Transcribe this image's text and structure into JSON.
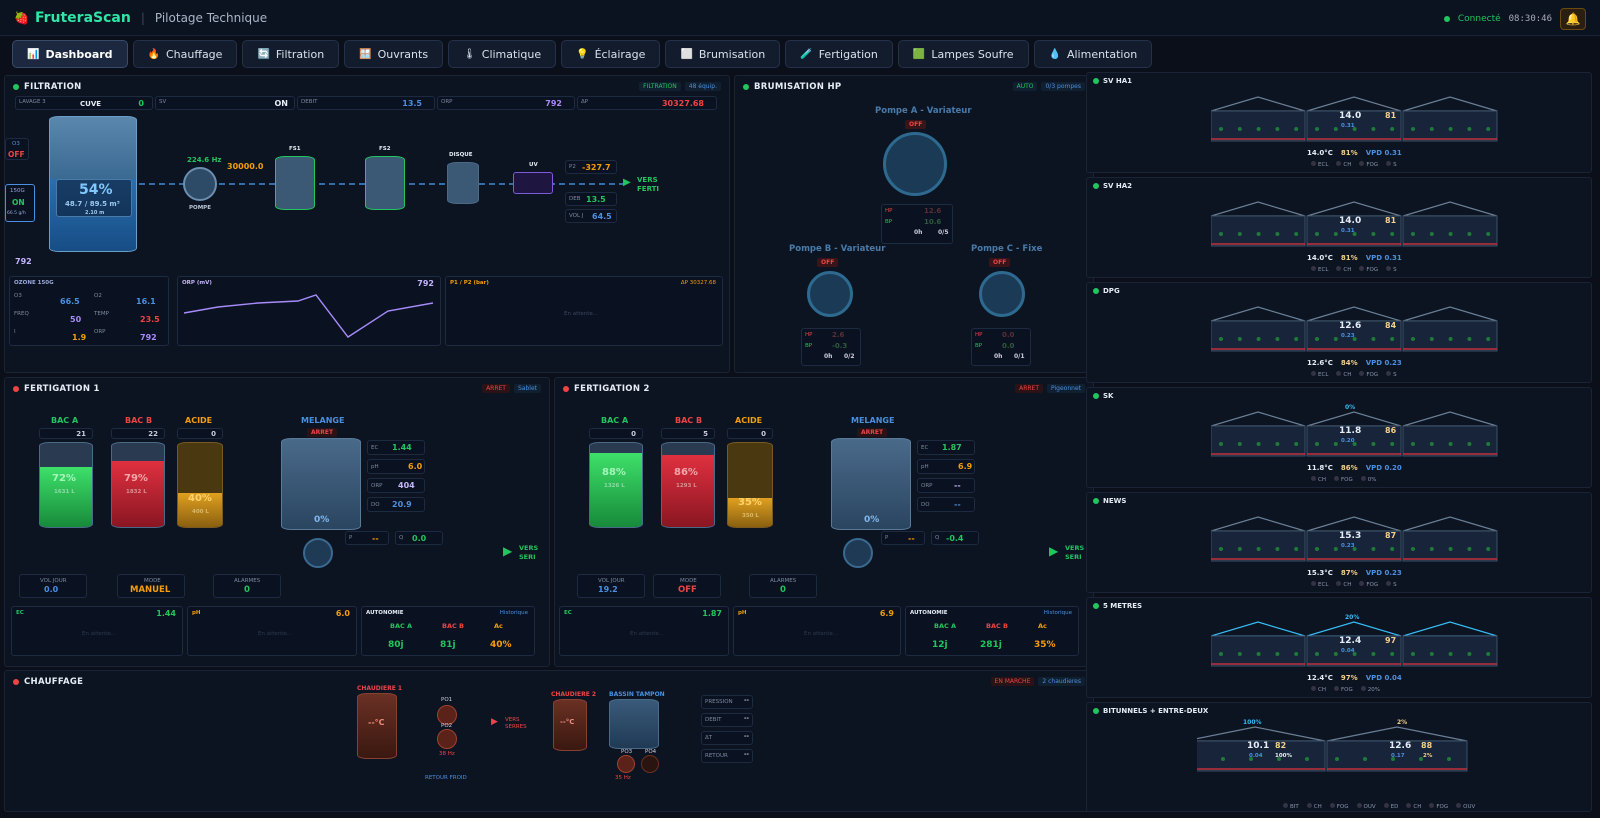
{
  "app": {
    "name": "FruteraScan",
    "subtitle": "Pilotage Technique",
    "status": "Connecté",
    "time": "08:30:46"
  },
  "tabs": [
    {
      "label": "Dashboard",
      "icon": "📊"
    },
    {
      "label": "Chauffage",
      "icon": "🔥"
    },
    {
      "label": "Filtration",
      "icon": "🔄"
    },
    {
      "label": "Ouvrants",
      "icon": "🪟"
    },
    {
      "label": "Climatique",
      "icon": "🌡"
    },
    {
      "label": "Éclairage",
      "icon": "💡"
    },
    {
      "label": "Brumisation",
      "icon": "⬜"
    },
    {
      "label": "Fertigation",
      "icon": "🧪"
    },
    {
      "label": "Lampes Soufre",
      "icon": "🟩"
    },
    {
      "label": "Alimentation",
      "icon": "💧"
    }
  ],
  "filtration": {
    "title": "FILTRATION",
    "badge1": "FILTRATION",
    "badge2": "48 équip.",
    "cuve_label": "CUVE",
    "lavage_label": "LAVAGE 3",
    "lavage_val": "0",
    "sv_label": "SV",
    "sv_val": "ON",
    "debit_label": "DEBIT",
    "debit_val": "13.5",
    "orp_label": "ORP",
    "orp_val": "792",
    "ap_label": "ΔP",
    "ap_val": "30327.68",
    "o3_label": "O3",
    "o3_state": "OFF",
    "ozone_label": "150G",
    "ozone_state": "ON",
    "ozone_rate": "66.5 g/h",
    "cuve_pct": "54%",
    "cuve_vol": "48.7 / 89.5 m³",
    "cuve_h": "2.10 m",
    "orp_bottom": "792",
    "pompe_hz": "224.6 Hz",
    "pompe_label": "POMPE",
    "pompe_val": "30000.0",
    "fs1": "FS1",
    "fs2": "FS2",
    "disque": "DISQUE",
    "uv": "UV",
    "p2_label": "P2",
    "p2_val": "-327.7",
    "deb_label": "DEB",
    "deb_val": "13.5",
    "volj_label": "VOL J",
    "volj_val": "64.5",
    "vers": "VERS",
    "ferti": "FERTI",
    "ozone_box": {
      "title": "OZONE 150G",
      "o3_label": "O3",
      "o3_val": "66.5",
      "o2_label": "O2",
      "o2_val": "16.1",
      "freq_label": "FREQ",
      "freq_val": "50",
      "temp_label": "TEMP",
      "temp_val": "23.5",
      "i_label": "I",
      "i_val": "1.9",
      "orp_label": "ORP",
      "orp_val": "792"
    },
    "orp_chart_title": "ORP (mV)",
    "orp_chart_val": "792",
    "p_chart_title": "P1 / P2 (bar)",
    "p_chart_ap": "ΔP 30327.68",
    "en_attente": "En attente..."
  },
  "brumisation": {
    "title": "BRUMISATION HP",
    "badge1": "AUTO",
    "badge2": "0/3 pompes",
    "pompeA": "Pompe A - Variateur",
    "pompeB": "Pompe B - Variateur",
    "pompeC": "Pompe C - Fixe",
    "off": "OFF",
    "hp_label": "HP",
    "bp_label": "BP",
    "hp_a": "12.6",
    "bp_a": "10.6",
    "h_a": "0h",
    "r_a": "0/5",
    "hp_b": "2.6",
    "bp_b": "-0.3",
    "h_b": "0h",
    "r_b": "0/2",
    "hp_c": "0.0",
    "bp_c": "0.0",
    "h_c": "0h",
    "r_c": "0/1"
  },
  "ferti1": {
    "title": "FERTIGATION 1",
    "badge1": "ARRET",
    "badge2": "Sablet",
    "bacA": "BAC A",
    "bacB": "BAC B",
    "acide": "ACIDE",
    "melange": "MELANGE",
    "arret": "ARRET",
    "a_pct": "72%",
    "a_l": "1631 L",
    "a_top": "21",
    "b_pct": "79%",
    "b_l": "1832 L",
    "b_top": "22",
    "c_pct": "40%",
    "c_l": "400 L",
    "c_top": "0",
    "m_pct": "0%",
    "ec_label": "EC",
    "ec": "1.44",
    "ph_label": "pH",
    "ph": "6.0",
    "orp_label": "ORP",
    "orp": "404",
    "do_label": "DO",
    "do": "20.9",
    "p_label": "P",
    "p": "--",
    "q_label": "Q",
    "q": "0.0",
    "vol_label": "VOL JOUR",
    "vol": "0.0",
    "mode_label": "MODE",
    "mode": "MANUEL",
    "alarm_label": "ALARMES",
    "alarm": "0",
    "chart_ec": "1.44",
    "chart_ph": "6.0",
    "auto_title": "AUTONOMIE",
    "historique": "Historique",
    "ac": "Ac",
    "auto_a": "80j",
    "auto_b": "81j",
    "auto_c": "40%",
    "vers": "VERS",
    "seri": "SERI"
  },
  "ferti2": {
    "title": "FERTIGATION 2",
    "badge1": "ARRET",
    "badge2": "Pigeonnet",
    "a_pct": "88%",
    "a_l": "1326 L",
    "a_top": "0",
    "b_pct": "86%",
    "b_l": "1293 L",
    "b_top": "5",
    "c_pct": "35%",
    "c_l": "350 L",
    "c_top": "0",
    "m_pct": "0%",
    "ec": "1.87",
    "ph": "6.9",
    "orp": "--",
    "do": "--",
    "p": "--",
    "q": "-0.4",
    "vol": "19.2",
    "mode": "OFF",
    "alarm": "0",
    "chart_ec": "1.87",
    "chart_ph": "6.9",
    "auto_a": "12j",
    "auto_b": "281j",
    "auto_c": "35%"
  },
  "chauffage": {
    "title": "CHAUFFAGE",
    "badge1": "EN MARCHE",
    "badge2": "2 chaudieres",
    "ch1": "CHAUDIERE 1",
    "ch2": "CHAUDIERE 2",
    "bassin": "BASSIN TAMPON",
    "temp": "--°C",
    "po1": "PO1",
    "po2": "PO2",
    "po3": "PO3",
    "po4": "PO4",
    "hz1": "38 Hz",
    "hz2": "35 Hz",
    "vers": "VERS",
    "serres": "SERRES",
    "retour": "RETOUR FROID",
    "r1": "PRESSION",
    "r2": "DEBIT",
    "r3": "ΔT",
    "r4": "RETOUR",
    "dash": "--"
  },
  "houses": [
    {
      "name": "SV HA1",
      "t": "14.0",
      "h": "81",
      "vpd": "0.31",
      "sum_t": "14.0°C",
      "sum_h": "81%",
      "sum_vpd": "VPD 0.31",
      "legend": [
        "ECL",
        "CH",
        "FOG",
        "S"
      ],
      "chval": "true"
    },
    {
      "name": "SV HA2",
      "t": "14.0",
      "h": "81",
      "vpd": "0.31",
      "sum_t": "14.0°C",
      "sum_h": "81%",
      "sum_vpd": "VPD 0.31",
      "legend": [
        "ECL",
        "CH",
        "FOG",
        "S"
      ]
    },
    {
      "name": "DPG",
      "t": "12.6",
      "h": "84",
      "vpd": "0.23",
      "sum_t": "12.6°C",
      "sum_h": "84%",
      "sum_vpd": "VPD 0.23",
      "legend": [
        "ECL",
        "CH",
        "FOG",
        "S"
      ]
    },
    {
      "name": "SK",
      "t": "11.8",
      "h": "86",
      "vpd": "0.20",
      "sum_t": "11.8°C",
      "sum_h": "86%",
      "sum_vpd": "VPD 0.20",
      "legend": [
        "CH",
        "FOG",
        "0%"
      ],
      "top": "0%"
    },
    {
      "name": "NEWS",
      "t": "15.3",
      "h": "87",
      "vpd": "0.23",
      "sum_t": "15.3°C",
      "sum_h": "87%",
      "sum_vpd": "VPD 0.23",
      "legend": [
        "ECL",
        "CH",
        "FOG",
        "S"
      ]
    },
    {
      "name": "5 METRES",
      "t": "12.4",
      "h": "97",
      "vpd": "0.04",
      "sum_t": "12.4°C",
      "sum_h": "97%",
      "sum_vpd": "VPD 0.04",
      "legend": [
        "CH",
        "FOG",
        "20%"
      ],
      "top": "20%"
    },
    {
      "name": "BITUNNELS + ENTRE-DEUX",
      "t": "10.1",
      "h": "82",
      "vpd": "0.04",
      "t2": "12.6",
      "h2": "88",
      "vpd2": "0.17",
      "top": "100%",
      "top2": "2%",
      "extra1": "100%",
      "extra2": "2%",
      "legend": [
        "BIT",
        "CH",
        "FOG",
        "OUV",
        "ED",
        "CH",
        "FOG",
        "OUV"
      ]
    }
  ],
  "vpd_label": "VPD"
}
